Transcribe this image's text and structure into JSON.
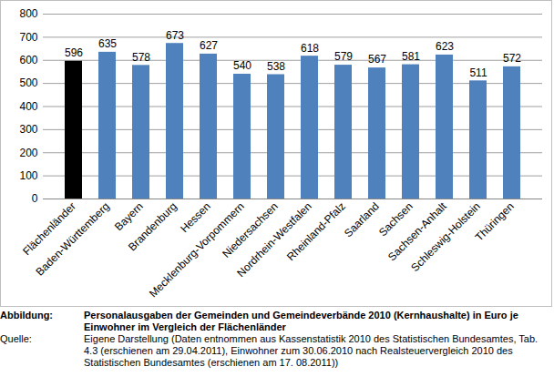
{
  "chart_data": {
    "type": "bar",
    "title_label": "Abbildung:",
    "title": "Personalausgaben der Gemeinden und Gemeindeverbände 2010 (Kernhaushalte) in Euro je Einwohner im Vergleich der Flächenländer",
    "source_label": "Quelle:",
    "source": "Eigene Darstellung (Daten entnommen aus Kassenstatistik 2010 des Statistischen Bundesamtes, Tab. 4.3 (erschienen am 29.04.2011), Einwohner zum 30.06.2010 nach Realsteuervergleich 2010 des Statistischen Bundesamtes (erschienen am 17. 08.2011))",
    "categories": [
      "Flächenländer",
      "Baden-Württemberg",
      "Bayern",
      "Brandenburg",
      "Hessen",
      "Mecklenburg-Vorpommern",
      "Niedersachsen",
      "Nordrhein-Westfalen",
      "Rheinland-Pfalz",
      "Saarland",
      "Sachsen",
      "Sachsen-Anhalt",
      "Schleswig-Holstein",
      "Thüringen"
    ],
    "values": [
      596,
      635,
      578,
      673,
      627,
      540,
      538,
      618,
      579,
      567,
      581,
      623,
      511,
      572
    ],
    "colors": [
      "#000000",
      "#4f81bd",
      "#4f81bd",
      "#4f81bd",
      "#4f81bd",
      "#4f81bd",
      "#4f81bd",
      "#4f81bd",
      "#4f81bd",
      "#4f81bd",
      "#4f81bd",
      "#4f81bd",
      "#4f81bd",
      "#4f81bd"
    ],
    "ylim": [
      0,
      800
    ],
    "yticks": [
      0,
      100,
      200,
      300,
      400,
      500,
      600,
      700,
      800
    ],
    "grid": true,
    "data_labels": true
  }
}
